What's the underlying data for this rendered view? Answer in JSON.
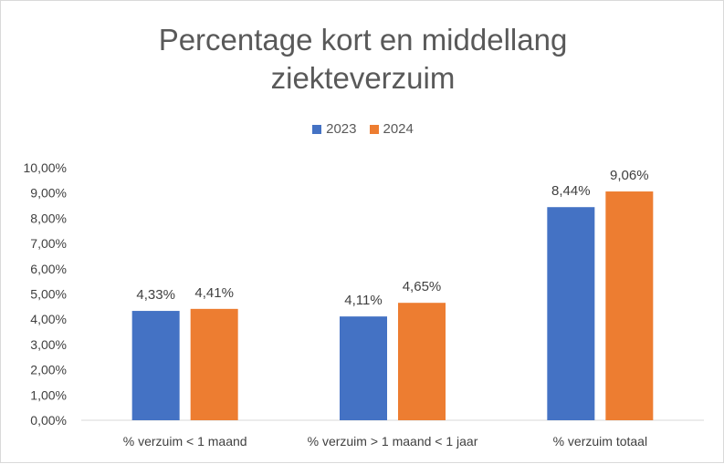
{
  "chart_data": {
    "type": "bar",
    "title_lines": [
      "Percentage kort en middellang",
      "ziekteverzuim"
    ],
    "categories": [
      "% verzuim < 1 maand",
      "% verzuim > 1 maand < 1 jaar",
      "% verzuim totaal"
    ],
    "series": [
      {
        "name": "2023",
        "color": "#4472c4",
        "values": [
          4.33,
          4.11,
          8.44
        ],
        "labels": [
          "4,33%",
          "4,11%",
          "8,44%"
        ]
      },
      {
        "name": "2024",
        "color": "#ed7d31",
        "values": [
          4.41,
          4.65,
          9.06
        ],
        "labels": [
          "4,41%",
          "4,65%",
          "9,06%"
        ]
      }
    ],
    "ylim": [
      0,
      10
    ],
    "y_ticks": [
      "0,00%",
      "1,00%",
      "2,00%",
      "3,00%",
      "4,00%",
      "5,00%",
      "6,00%",
      "7,00%",
      "8,00%",
      "9,00%",
      "10,00%"
    ],
    "legend_position": "top",
    "grid": false
  }
}
